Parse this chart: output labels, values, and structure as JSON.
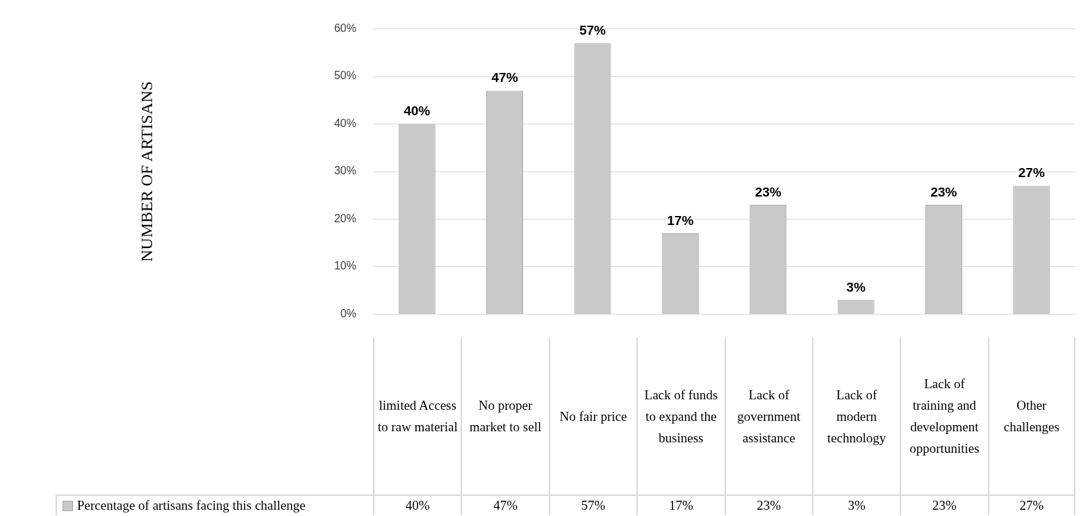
{
  "chart_data": {
    "type": "bar",
    "annotations": [
      "NUMBER OF ARTISANS"
    ],
    "categories": [
      "limited Access to raw material",
      "No proper market to sell",
      "No fair price",
      "Lack of funds to expand the business",
      "Lack of government assistance",
      "Lack of modern technology",
      "Lack of training and development opportunities",
      "Other challenges"
    ],
    "series": [
      {
        "name": "Percentage of artisans facing this challenge",
        "color": "#c9c9c9",
        "values": [
          40,
          47,
          57,
          17,
          23,
          3,
          23,
          27
        ],
        "value_labels": [
          "40%",
          "47%",
          "57%",
          "17%",
          "23%",
          "3%",
          "23%",
          "27%"
        ]
      }
    ],
    "ylim": [
      0,
      60
    ],
    "yticks": [
      {
        "value": 0,
        "label": "0%"
      },
      {
        "value": 10,
        "label": "10%"
      },
      {
        "value": 20,
        "label": "20%"
      },
      {
        "value": 30,
        "label": "30%"
      },
      {
        "value": 40,
        "label": "40%"
      },
      {
        "value": 50,
        "label": "50%"
      },
      {
        "value": 60,
        "label": "60%"
      }
    ],
    "grid": "y",
    "legend": "bottom"
  }
}
